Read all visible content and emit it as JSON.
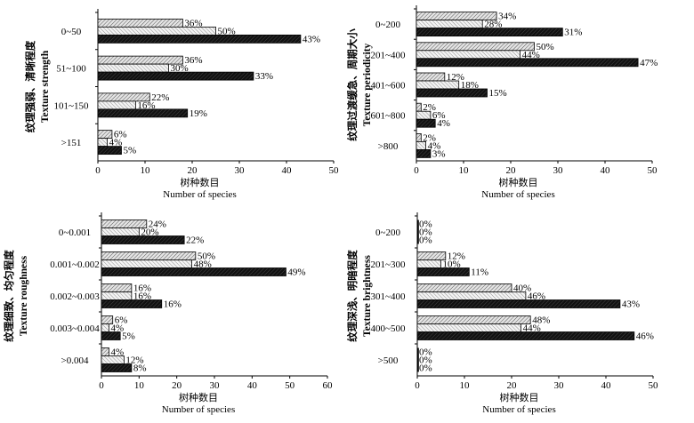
{
  "chart_data": [
    {
      "type": "bar",
      "orientation": "horizontal",
      "ylabel_zh": "纹理强弱、清晰程度",
      "ylabel_en": "Texture strength",
      "xlabel_zh": "树种数目",
      "xlabel_en": "Number of species",
      "xlim": [
        0,
        50
      ],
      "xticks": [
        0,
        10,
        20,
        30,
        40,
        50
      ],
      "categories": [
        "0~50",
        "51~100",
        "101~150",
        ">151"
      ],
      "series": [
        {
          "name": "series-1",
          "values": [
            18,
            18,
            11,
            3
          ],
          "labels": [
            "36%",
            "36%",
            "22%",
            "6%"
          ]
        },
        {
          "name": "series-2",
          "values": [
            25,
            15,
            8,
            2
          ],
          "labels": [
            "50%",
            "30%",
            "16%",
            "4%"
          ]
        },
        {
          "name": "series-3",
          "values": [
            43,
            33,
            19,
            5
          ],
          "labels": [
            "43%",
            "33%",
            "19%",
            "5%"
          ]
        }
      ]
    },
    {
      "type": "bar",
      "orientation": "horizontal",
      "ylabel_zh": "纹理过渡缓急、周期大小",
      "ylabel_en": "Texture periodicity",
      "xlabel_zh": "树种数目",
      "xlabel_en": "Number of species",
      "xlim": [
        0,
        50
      ],
      "xticks": [
        0,
        10,
        20,
        30,
        40,
        50
      ],
      "categories": [
        "0~200",
        "201~400",
        "401~600",
        "601~800",
        ">800"
      ],
      "series": [
        {
          "name": "series-1",
          "values": [
            17,
            25,
            6,
            1,
            1
          ],
          "labels": [
            "34%",
            "50%",
            "12%",
            "2%",
            "2%"
          ]
        },
        {
          "name": "series-2",
          "values": [
            14,
            22,
            9,
            3,
            2
          ],
          "labels": [
            "28%",
            "44%",
            "18%",
            "6%",
            "4%"
          ]
        },
        {
          "name": "series-3",
          "values": [
            31,
            47,
            15,
            4,
            3
          ],
          "labels": [
            "31%",
            "47%",
            "15%",
            "4%",
            "3%"
          ]
        }
      ]
    },
    {
      "type": "bar",
      "orientation": "horizontal",
      "ylabel_zh": "纹理细致、均匀程度",
      "ylabel_en": "Texture roughness",
      "xlabel_zh": "树种数目",
      "xlabel_en": "Number of species",
      "xlim": [
        0,
        60
      ],
      "xticks": [
        0,
        10,
        20,
        30,
        40,
        50,
        60
      ],
      "categories": [
        "0~0.001",
        "0.001~0.002",
        "0.002~0.003",
        "0.003~0.004",
        ">0.004"
      ],
      "series": [
        {
          "name": "series-1",
          "values": [
            12,
            25,
            8,
            3,
            2
          ],
          "labels": [
            "24%",
            "50%",
            "16%",
            "6%",
            "4%"
          ]
        },
        {
          "name": "series-2",
          "values": [
            10,
            24,
            8,
            2,
            6
          ],
          "labels": [
            "20%",
            "48%",
            "16%",
            "4%",
            "12%"
          ]
        },
        {
          "name": "series-3",
          "values": [
            22,
            49,
            16,
            5,
            8
          ],
          "labels": [
            "22%",
            "49%",
            "16%",
            "5%",
            "8%"
          ]
        }
      ]
    },
    {
      "type": "bar",
      "orientation": "horizontal",
      "ylabel_zh": "纹理深浅、明暗程度",
      "ylabel_en": "Texture brightness",
      "xlabel_zh": "树种数目",
      "xlabel_en": "Number of species",
      "xlim": [
        0,
        50
      ],
      "xticks": [
        0,
        10,
        20,
        30,
        40,
        50
      ],
      "categories": [
        "0~200",
        "201~300",
        "301~400",
        "400~500",
        ">500"
      ],
      "series": [
        {
          "name": "series-1",
          "values": [
            0,
            6,
            20,
            24,
            0
          ],
          "labels": [
            "0%",
            "12%",
            "40%",
            "48%",
            "0%"
          ]
        },
        {
          "name": "series-2",
          "values": [
            0,
            5,
            23,
            22,
            0
          ],
          "labels": [
            "0%",
            "10%",
            "46%",
            "44%",
            "0%"
          ]
        },
        {
          "name": "series-3",
          "values": [
            0,
            11,
            43,
            46,
            0
          ],
          "labels": [
            "0%",
            "11%",
            "43%",
            "46%",
            "0%"
          ]
        }
      ]
    }
  ]
}
